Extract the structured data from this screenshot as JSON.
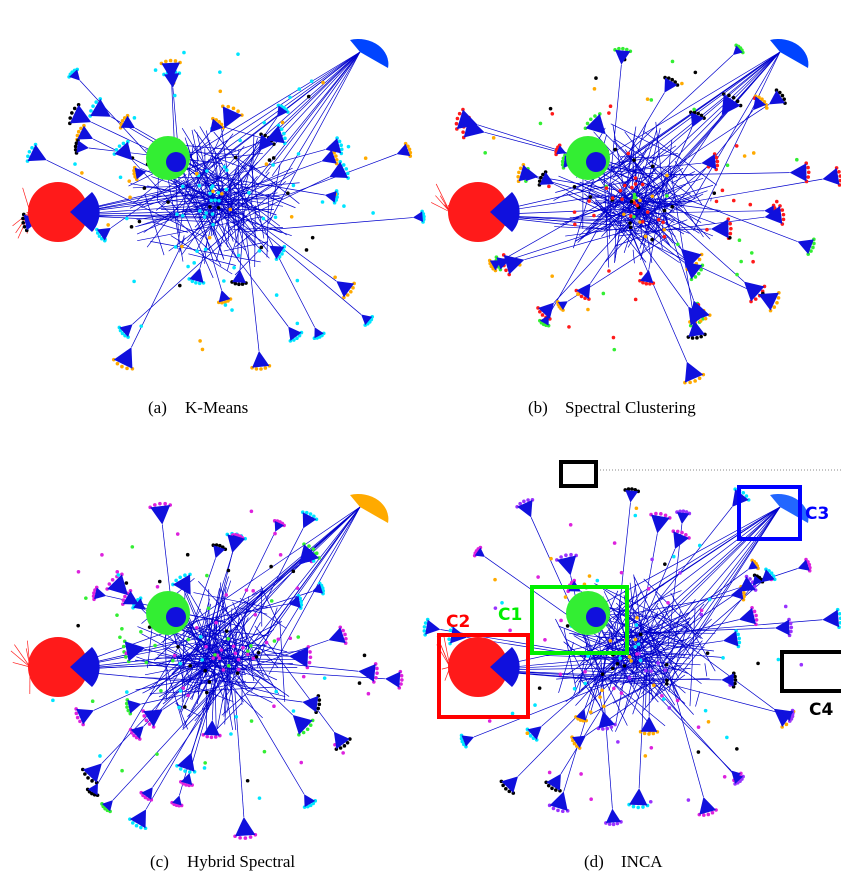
{
  "panels": [
    {
      "tag": "(a)",
      "caption": "K-Means"
    },
    {
      "tag": "(b)",
      "caption": "Spectral Clustering"
    },
    {
      "tag": "(c)",
      "caption": "Hybrid Spectral"
    },
    {
      "tag": "(d)",
      "caption": "INCA"
    }
  ],
  "annotations": [
    {
      "label": "C1"
    },
    {
      "label": "C2"
    },
    {
      "label": "C3"
    },
    {
      "label": "C4"
    }
  ]
}
